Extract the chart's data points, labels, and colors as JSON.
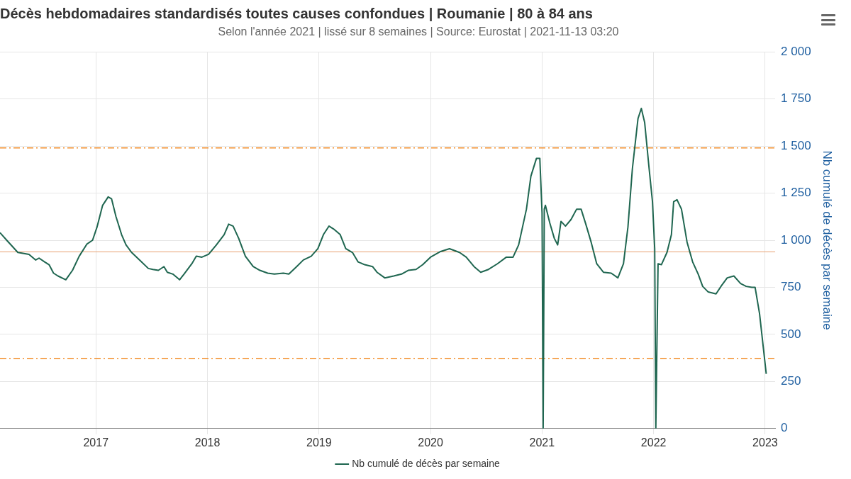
{
  "chart_data": {
    "type": "line",
    "title": "Décès hebdomadaires standardisés toutes causes confondues | Roumanie | 80 à 84 ans",
    "subtitle": "Selon l'année 2021 | lissé sur 8 semaines | Source: Eurostat | 2021-11-13 03:20",
    "ylabel": "Nb cumulé de décès par semaine",
    "x": [
      2016.14,
      2016.2,
      2016.3,
      2016.4,
      2016.46,
      2016.49,
      2016.54,
      2016.58,
      2016.62,
      2016.66,
      2016.73,
      2016.79,
      2016.85,
      2016.92,
      2016.97,
      2017.01,
      2017.06,
      2017.11,
      2017.14,
      2017.18,
      2017.23,
      2017.27,
      2017.32,
      2017.4,
      2017.47,
      2017.51,
      2017.56,
      2017.61,
      2017.64,
      2017.69,
      2017.75,
      2017.79,
      2017.86,
      2017.9,
      2017.95,
      2018.01,
      2018.08,
      2018.15,
      2018.19,
      2018.23,
      2018.28,
      2018.34,
      2018.41,
      2018.47,
      2018.54,
      2018.6,
      2018.68,
      2018.73,
      2018.8,
      2018.86,
      2018.93,
      2018.99,
      2019.04,
      2019.09,
      2019.13,
      2019.19,
      2019.24,
      2019.3,
      2019.35,
      2019.41,
      2019.48,
      2019.52,
      2019.59,
      2019.67,
      2019.74,
      2019.8,
      2019.87,
      2019.93,
      2020,
      2020.09,
      2020.17,
      2020.26,
      2020.32,
      2020.39,
      2020.45,
      2020.52,
      2020.6,
      2020.68,
      2020.74,
      2020.79,
      2020.86,
      2020.9,
      2020.95,
      2020.98,
      2021,
      2021.01,
      2021.02,
      2021.03,
      2021.07,
      2021.11,
      2021.14,
      2021.17,
      2021.21,
      2021.26,
      2021.31,
      2021.35,
      2021.39,
      2021.44,
      2021.49,
      2021.55,
      2021.62,
      2021.68,
      2021.73,
      2021.77,
      2021.81,
      2021.86,
      2021.89,
      2021.92,
      2021.96,
      2021.99,
      2022.01,
      2022.02,
      2022.04,
      2022.07,
      2022.12,
      2022.16,
      2022.18,
      2022.21,
      2022.25,
      2022.3,
      2022.35,
      2022.4,
      2022.44,
      2022.49,
      2022.56,
      2022.61,
      2022.66,
      2022.72,
      2022.78,
      2022.83,
      2022.88,
      2022.91,
      2022.95,
      2023.01
    ],
    "series": [
      {
        "name": "Nb cumulé de décès par semaine",
        "color": "#1f6650",
        "values": [
          1040,
          1000,
          935,
          925,
          895,
          905,
          885,
          870,
          825,
          810,
          790,
          840,
          915,
          980,
          1000,
          1070,
          1185,
          1230,
          1220,
          1125,
          1030,
          975,
          935,
          890,
          850,
          845,
          840,
          860,
          830,
          820,
          790,
          820,
          875,
          915,
          910,
          925,
          975,
          1030,
          1085,
          1075,
          1010,
          915,
          860,
          840,
          825,
          820,
          825,
          820,
          860,
          895,
          915,
          955,
          1030,
          1075,
          1060,
          1030,
          955,
          935,
          885,
          870,
          860,
          830,
          800,
          810,
          820,
          840,
          845,
          870,
          910,
          940,
          955,
          935,
          910,
          860,
          830,
          845,
          875,
          910,
          910,
          975,
          1165,
          1340,
          1435,
          1435,
          1145,
          0,
          1165,
          1185,
          1090,
          1010,
          975,
          1100,
          1075,
          1110,
          1165,
          1165,
          1090,
          990,
          875,
          830,
          825,
          800,
          875,
          1070,
          1380,
          1645,
          1700,
          1625,
          1380,
          1205,
          955,
          0,
          875,
          870,
          935,
          1030,
          1205,
          1215,
          1165,
          990,
          885,
          820,
          755,
          725,
          715,
          760,
          800,
          810,
          770,
          755,
          750,
          750,
          610,
          290
        ]
      }
    ],
    "xlim": [
      2016.14,
      2023.09
    ],
    "xticks": [
      2017,
      2018,
      2019,
      2020,
      2021,
      2022,
      2023
    ],
    "ylim": [
      0,
      2000
    ],
    "yticks": [
      0,
      250,
      500,
      750,
      {
        "value": 1000,
        "label": "1 000"
      },
      {
        "value": 1250,
        "label": "1 250"
      },
      {
        "value": 1500,
        "label": "1 500"
      },
      {
        "value": 1750,
        "label": "1 750"
      },
      {
        "value": 2000,
        "label": "2 000"
      }
    ],
    "ref_lines": [
      {
        "axis": "y",
        "value": 1490,
        "color": "#f28e2b",
        "line_style": "dashed"
      },
      {
        "axis": "y",
        "value": 938,
        "color": "#e8a070",
        "line_style": "solid"
      },
      {
        "axis": "y",
        "value": 373,
        "color": "#f28e2b",
        "line_style": "dashed"
      }
    ],
    "grid": true,
    "legend": "bottom",
    "marker": "none",
    "line_style": "solid"
  }
}
